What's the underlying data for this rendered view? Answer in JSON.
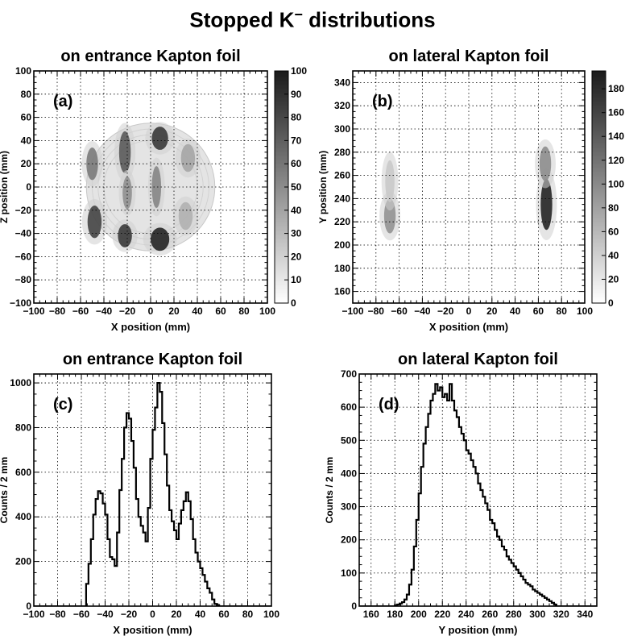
{
  "figure": {
    "title_main": "Stopped K",
    "title_sup": "−",
    "title_tail": " distributions"
  },
  "chart_data": [
    {
      "id": "a",
      "type": "heatmap",
      "title": "on entrance Kapton foil",
      "panel_label": "(a)",
      "xlabel": "X position (mm)",
      "ylabel": "Z position (mm)",
      "xlim": [
        -100,
        100
      ],
      "ylim": [
        -100,
        100
      ],
      "xticks": [
        -100,
        -80,
        -60,
        -40,
        -20,
        0,
        20,
        40,
        60,
        80,
        100
      ],
      "yticks": [
        -100,
        -80,
        -60,
        -40,
        -20,
        0,
        20,
        40,
        60,
        80,
        100
      ],
      "grid": true,
      "colorbar": {
        "min": 0,
        "max": 100,
        "ticks": [
          0,
          10,
          20,
          30,
          40,
          50,
          60,
          70,
          80,
          90,
          100
        ]
      },
      "region": {
        "shape": "circle",
        "center": [
          0,
          0
        ],
        "radius": 55
      },
      "hotspots": [
        {
          "x": -48,
          "y": -30,
          "rx": 6,
          "ry": 14,
          "value": 80
        },
        {
          "x": -50,
          "y": 20,
          "rx": 5,
          "ry": 14,
          "value": 55
        },
        {
          "x": -22,
          "y": -42,
          "rx": 6,
          "ry": 10,
          "value": 85
        },
        {
          "x": -22,
          "y": 30,
          "rx": 5,
          "ry": 18,
          "value": 70
        },
        {
          "x": -20,
          "y": -5,
          "rx": 4,
          "ry": 14,
          "value": 45
        },
        {
          "x": 8,
          "y": -45,
          "rx": 8,
          "ry": 10,
          "value": 95
        },
        {
          "x": 8,
          "y": 42,
          "rx": 7,
          "ry": 10,
          "value": 85
        },
        {
          "x": 5,
          "y": 0,
          "rx": 4,
          "ry": 18,
          "value": 50
        },
        {
          "x": 32,
          "y": 25,
          "rx": 6,
          "ry": 12,
          "value": 35
        },
        {
          "x": 30,
          "y": -25,
          "rx": 6,
          "ry": 12,
          "value": 30
        }
      ]
    },
    {
      "id": "b",
      "type": "heatmap",
      "title": "on lateral Kapton foil",
      "panel_label": "(b)",
      "xlabel": "X position (mm)",
      "ylabel": "Y position (mm)",
      "xlim": [
        -100,
        100
      ],
      "ylim": [
        150,
        350
      ],
      "xticks": [
        -100,
        -80,
        -60,
        -40,
        -20,
        0,
        20,
        40,
        60,
        80,
        100
      ],
      "yticks": [
        160,
        180,
        200,
        220,
        240,
        260,
        280,
        300,
        320,
        340
      ],
      "grid": true,
      "colorbar": {
        "min": 0,
        "max": 195,
        "ticks": [
          0,
          20,
          40,
          60,
          80,
          100,
          120,
          140,
          160,
          180
        ]
      },
      "hotspots": [
        {
          "x": 67,
          "y": 235,
          "rx": 5,
          "ry": 22,
          "value": 185
        },
        {
          "x": 66,
          "y": 270,
          "rx": 5,
          "ry": 15,
          "value": 90
        },
        {
          "x": -68,
          "y": 225,
          "rx": 5,
          "ry": 15,
          "value": 85
        },
        {
          "x": -68,
          "y": 255,
          "rx": 4,
          "ry": 18,
          "value": 35
        }
      ]
    },
    {
      "id": "c",
      "type": "bar",
      "style": "step-histogram",
      "title": "on entrance Kapton foil",
      "panel_label": "(c)",
      "xlabel": "X position (mm)",
      "ylabel": "Counts / 2 mm",
      "xlim": [
        -100,
        100
      ],
      "ylim": [
        0,
        1040
      ],
      "xticks": [
        -100,
        -80,
        -60,
        -40,
        -20,
        0,
        20,
        40,
        60,
        80,
        100
      ],
      "yticks": [
        0,
        200,
        400,
        600,
        800,
        1000
      ],
      "grid": true,
      "bin_width": 2,
      "bin_start": -56,
      "values": [
        100,
        190,
        300,
        410,
        480,
        515,
        505,
        460,
        410,
        300,
        220,
        210,
        180,
        330,
        520,
        660,
        800,
        865,
        840,
        740,
        620,
        480,
        400,
        360,
        330,
        290,
        440,
        660,
        790,
        890,
        1000,
        960,
        820,
        680,
        540,
        430,
        380,
        340,
        300,
        370,
        430,
        470,
        510,
        470,
        390,
        300,
        240,
        200,
        170,
        140,
        110,
        80,
        60,
        30,
        10,
        5
      ]
    },
    {
      "id": "d",
      "type": "bar",
      "style": "step-histogram",
      "title": "on lateral Kapton foil",
      "panel_label": "(d)",
      "xlabel": "Y position (mm)",
      "ylabel": "Counts / 2 mm",
      "xlim": [
        150,
        350
      ],
      "ylim": [
        0,
        700
      ],
      "xticks": [
        160,
        180,
        200,
        220,
        240,
        260,
        280,
        300,
        320,
        340
      ],
      "yticks": [
        0,
        100,
        200,
        300,
        400,
        500,
        600,
        700
      ],
      "grid": true,
      "bin_width": 2,
      "bin_start": 180,
      "values": [
        3,
        5,
        8,
        12,
        20,
        35,
        65,
        110,
        180,
        260,
        340,
        420,
        490,
        540,
        580,
        620,
        640,
        670,
        650,
        660,
        630,
        640,
        620,
        670,
        620,
        590,
        570,
        540,
        520,
        500,
        470,
        460,
        440,
        420,
        400,
        370,
        350,
        330,
        310,
        290,
        260,
        250,
        230,
        210,
        200,
        180,
        170,
        150,
        140,
        130,
        120,
        110,
        100,
        90,
        80,
        70,
        65,
        60,
        50,
        45,
        40,
        35,
        30,
        25,
        20,
        15,
        10,
        5
      ]
    }
  ]
}
